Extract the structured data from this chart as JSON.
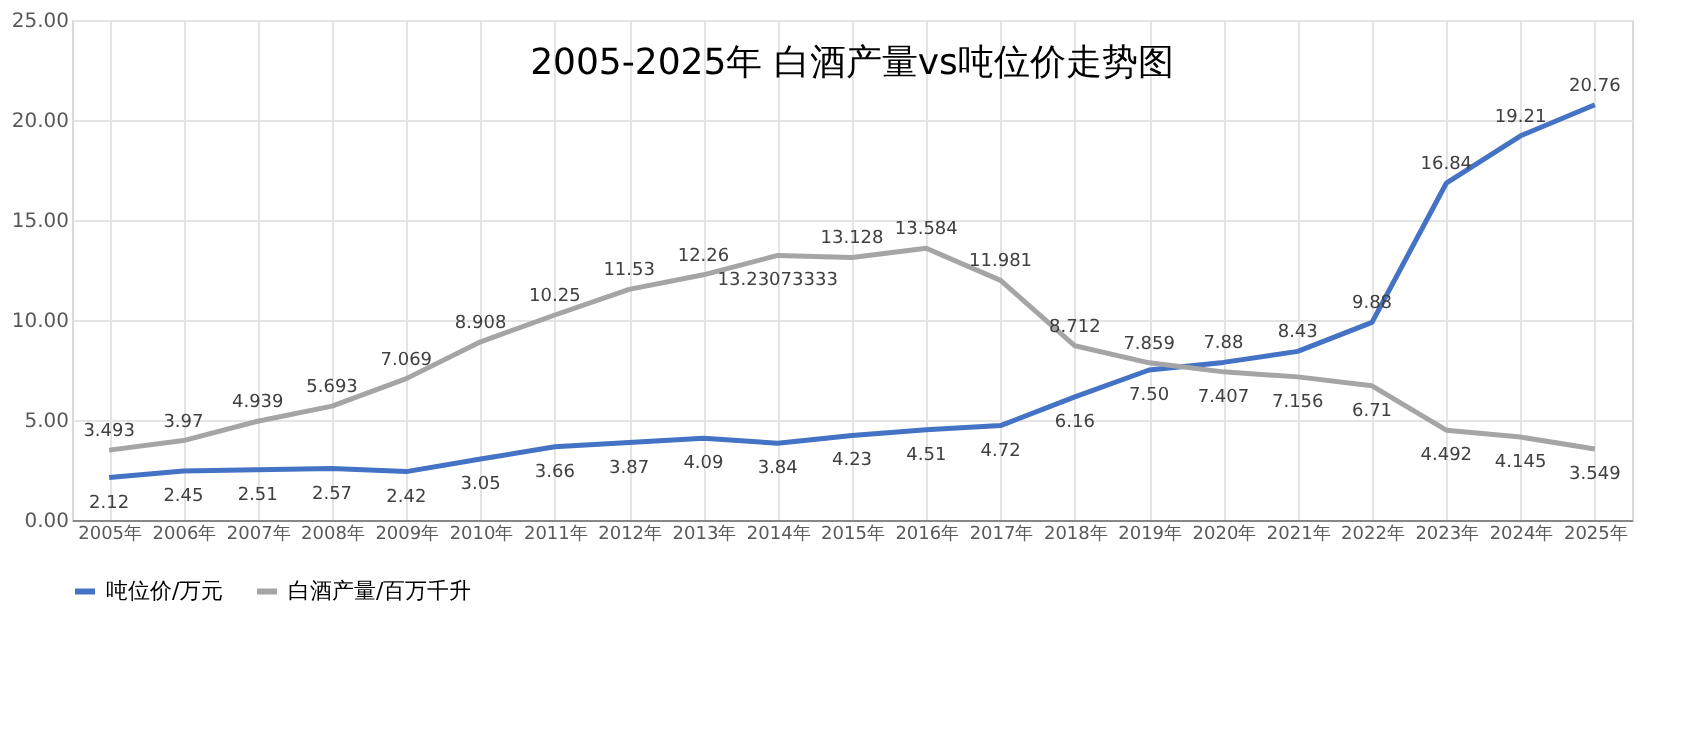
{
  "chart_data": {
    "type": "line",
    "title": "2005-2025年 白酒产量vs吨位价走势图",
    "categories": [
      "2005年",
      "2006年",
      "2007年",
      "2008年",
      "2009年",
      "2010年",
      "2011年",
      "2012年",
      "2013年",
      "2014年",
      "2015年",
      "2016年",
      "2017年",
      "2018年",
      "2019年",
      "2020年",
      "2021年",
      "2022年",
      "2023年",
      "2024年",
      "2025年"
    ],
    "series": [
      {
        "name": "吨位价/万元",
        "color": "#4472c4",
        "values": [
          2.12,
          2.45,
          2.51,
          2.57,
          2.42,
          3.05,
          3.66,
          3.87,
          4.09,
          3.84,
          4.23,
          4.51,
          4.72,
          6.16,
          7.5,
          7.88,
          8.43,
          9.88,
          16.84,
          19.21,
          20.76
        ],
        "value_labels": [
          "2.12",
          "2.45",
          "2.51",
          "2.57",
          "2.42",
          "3.05",
          "3.66",
          "3.87",
          "4.09",
          "3.84",
          "4.23",
          "4.51",
          "4.72",
          "6.16",
          "7.50",
          "7.88",
          "8.43",
          "9.88",
          "16.84",
          "19.21",
          "20.76"
        ]
      },
      {
        "name": "白酒产量/百万千升",
        "color": "#a5a5a5",
        "values": [
          3.493,
          3.97,
          4.939,
          5.693,
          7.069,
          8.908,
          10.25,
          11.53,
          12.26,
          13.23073333,
          13.128,
          13.584,
          11.981,
          8.712,
          7.859,
          7.407,
          7.156,
          6.71,
          4.492,
          4.145,
          3.549
        ],
        "value_labels": [
          "3.493",
          "3.97",
          "4.939",
          "5.693",
          "7.069",
          "8.908",
          "10.25",
          "11.53",
          "12.26",
          "13.23073333",
          "13.128",
          "13.584",
          "11.981",
          "8.712",
          "7.859",
          "7.407",
          "7.156",
          "6.71",
          "4.492",
          "4.145",
          "3.549"
        ]
      }
    ],
    "ylim": [
      0,
      25
    ],
    "yticks": [
      {
        "value": 0,
        "label": "0.00"
      },
      {
        "value": 5,
        "label": "5.00"
      },
      {
        "value": 10,
        "label": "10.00"
      },
      {
        "value": 15,
        "label": "15.00"
      },
      {
        "value": 20,
        "label": "20.00"
      },
      {
        "value": 25,
        "label": "25.00"
      }
    ],
    "grid": true,
    "legend": "bottom",
    "marker": "none",
    "line_style": "solid"
  }
}
